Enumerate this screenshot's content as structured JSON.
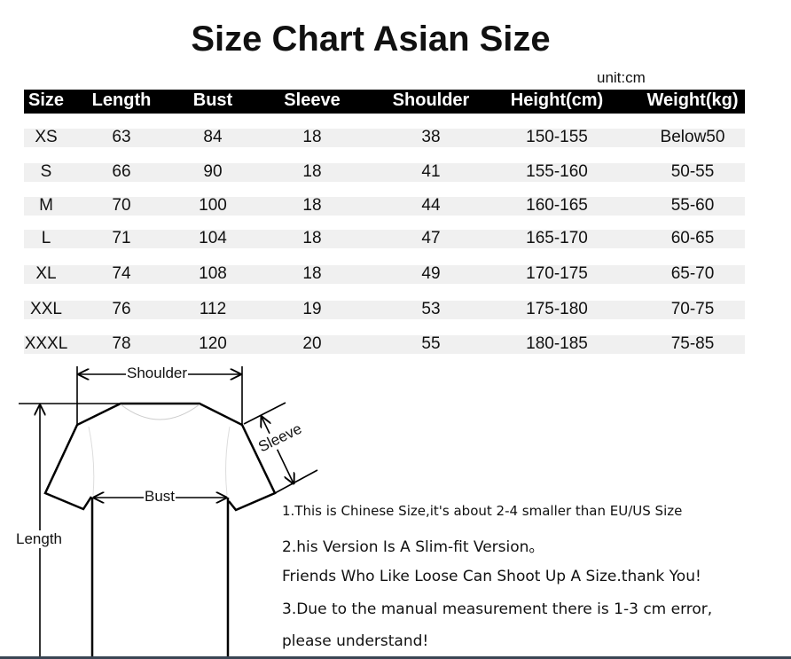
{
  "title": "Size Chart Asian Size",
  "unit": "unit:cm",
  "table": {
    "headers": [
      "Size",
      "Length",
      "Bust",
      "Sleeve",
      "Shoulder",
      "Height(cm)",
      "Weight(kg)"
    ],
    "rows": [
      [
        "XS",
        "63",
        "84",
        "18",
        "38",
        "150-155",
        "Below50"
      ],
      [
        "S",
        "66",
        "90",
        "18",
        "41",
        "155-160",
        "50-55"
      ],
      [
        "M",
        "70",
        "100",
        "18",
        "44",
        "160-165",
        "55-60"
      ],
      [
        "L",
        "71",
        "104",
        "18",
        "47",
        "165-170",
        "60-65"
      ],
      [
        "XL",
        "74",
        "108",
        "18",
        "49",
        "170-175",
        "65-70"
      ],
      [
        "XXL",
        "76",
        "112",
        "19",
        "53",
        "175-180",
        "70-75"
      ],
      [
        "XXXL",
        "78",
        "120",
        "20",
        "55",
        "180-185",
        "75-85"
      ]
    ]
  },
  "diagram": {
    "shoulder": "Shoulder",
    "sleeve": "Sleeve",
    "bust": "Bust",
    "length": "Length"
  },
  "notes": [
    "1.This is Chinese Size,it's about 2-4 smaller than EU/US Size",
    "2.his Version Is A Slim-fit Version。",
    "Friends Who Like Loose Can Shoot Up A Size.thank You!",
    "3.Due to the manual measurement there is 1-3 cm error,",
    "please understand!"
  ]
}
